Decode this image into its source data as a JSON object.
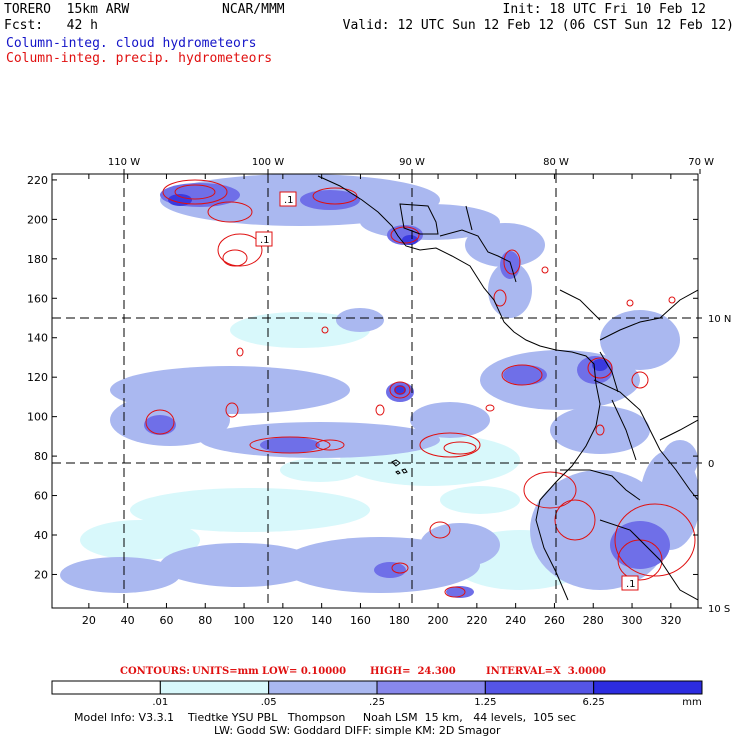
{
  "header": {
    "model": "TORERO  15km ARW",
    "org": "NCAR/MMM",
    "init": "Init: 18 UTC Fri 10 Feb 12",
    "fcst": "Fcst:   42 h",
    "valid": "Valid: 12 UTC Sun 12 Feb 12 (06 CST Sun 12 Feb 12)",
    "field1": "Column-integ. cloud hydrometeors",
    "field2": "Column-integ. precip. hydrometeors"
  },
  "map": {
    "lon_labels": [
      {
        "value": -110,
        "text": "110 W"
      },
      {
        "value": -100,
        "text": "100 W"
      },
      {
        "value": -90,
        "text": "90 W"
      },
      {
        "value": -80,
        "text": "80 W"
      },
      {
        "value": -70,
        "text": "70 W"
      }
    ],
    "lat_labels": [
      {
        "value": 10,
        "text": "10 N"
      },
      {
        "value": 0,
        "text": "0"
      },
      {
        "value": -10,
        "text": "10 S"
      }
    ],
    "x_ticks": [
      20,
      40,
      60,
      80,
      100,
      120,
      140,
      160,
      180,
      200,
      220,
      240,
      260,
      280,
      300,
      320
    ],
    "y_ticks": [
      20,
      40,
      60,
      80,
      100,
      120,
      140,
      160,
      180,
      200,
      220
    ],
    "x_range": [
      1,
      334
    ],
    "y_range": [
      3,
      223
    ],
    "contour_labels": [
      ".1",
      ".1",
      ".1"
    ]
  },
  "contours_text": {
    "label": "CONTOURS:",
    "units": "UNITS=mm",
    "low": "LOW= 0.10000",
    "high": "HIGH=  24.300",
    "interval": "INTERVAL=X  3.0000"
  },
  "colorbar": {
    "labels": [
      ".01",
      ".05",
      ".25",
      "1.25",
      "6.25"
    ],
    "unit": "mm",
    "colors": [
      "#ffffff",
      "#d8f8fb",
      "#aab8f0",
      "#8888ec",
      "#5555e6",
      "#2c2ce0"
    ]
  },
  "footer": {
    "line1": "Model Info: V3.3.1    Tiedtke YSU PBL   Thompson     Noah LSM  15 km,   44 levels,  105 sec",
    "line2": "LW: Godd SW: Goddard DIFF: simple KM: 2D Smagor"
  }
}
